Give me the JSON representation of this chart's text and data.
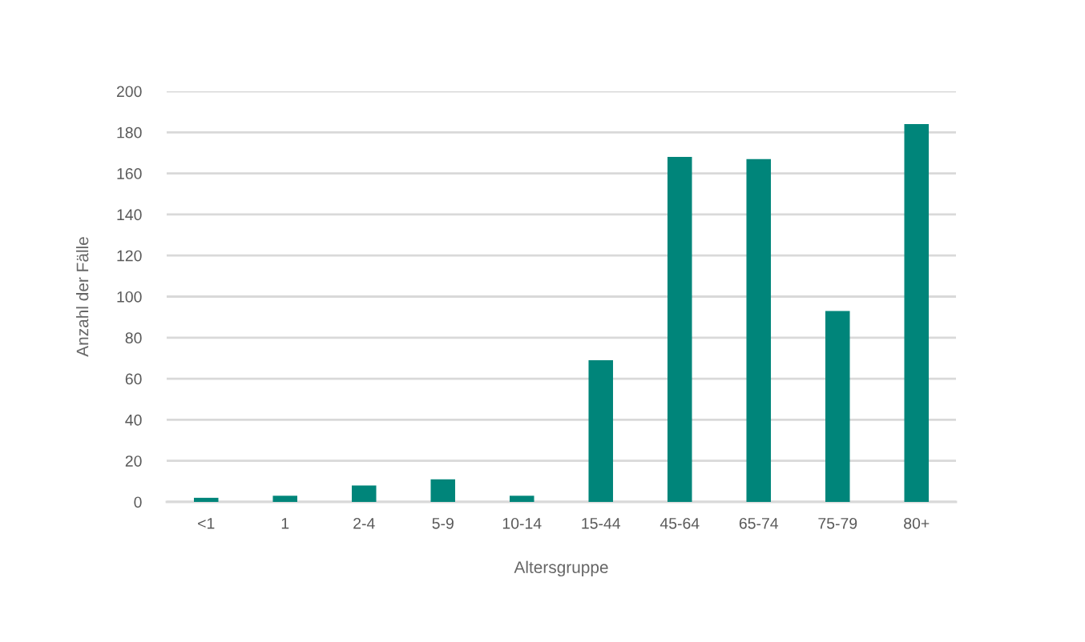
{
  "chart_data": {
    "type": "bar",
    "xlabel": "Altersgruppe",
    "ylabel": "Anzahl der Fälle",
    "categories": [
      "<1",
      "1",
      "2-4",
      "5-9",
      "10-14",
      "15-44",
      "45-64",
      "65-74",
      "75-79",
      "80+"
    ],
    "values": [
      2,
      3,
      8,
      11,
      3,
      69,
      168,
      167,
      93,
      184
    ],
    "color": "#00857a",
    "ylim": [
      0,
      200
    ],
    "yticks": [
      0,
      20,
      40,
      60,
      80,
      100,
      120,
      140,
      160,
      180,
      200
    ],
    "grid": "y"
  }
}
